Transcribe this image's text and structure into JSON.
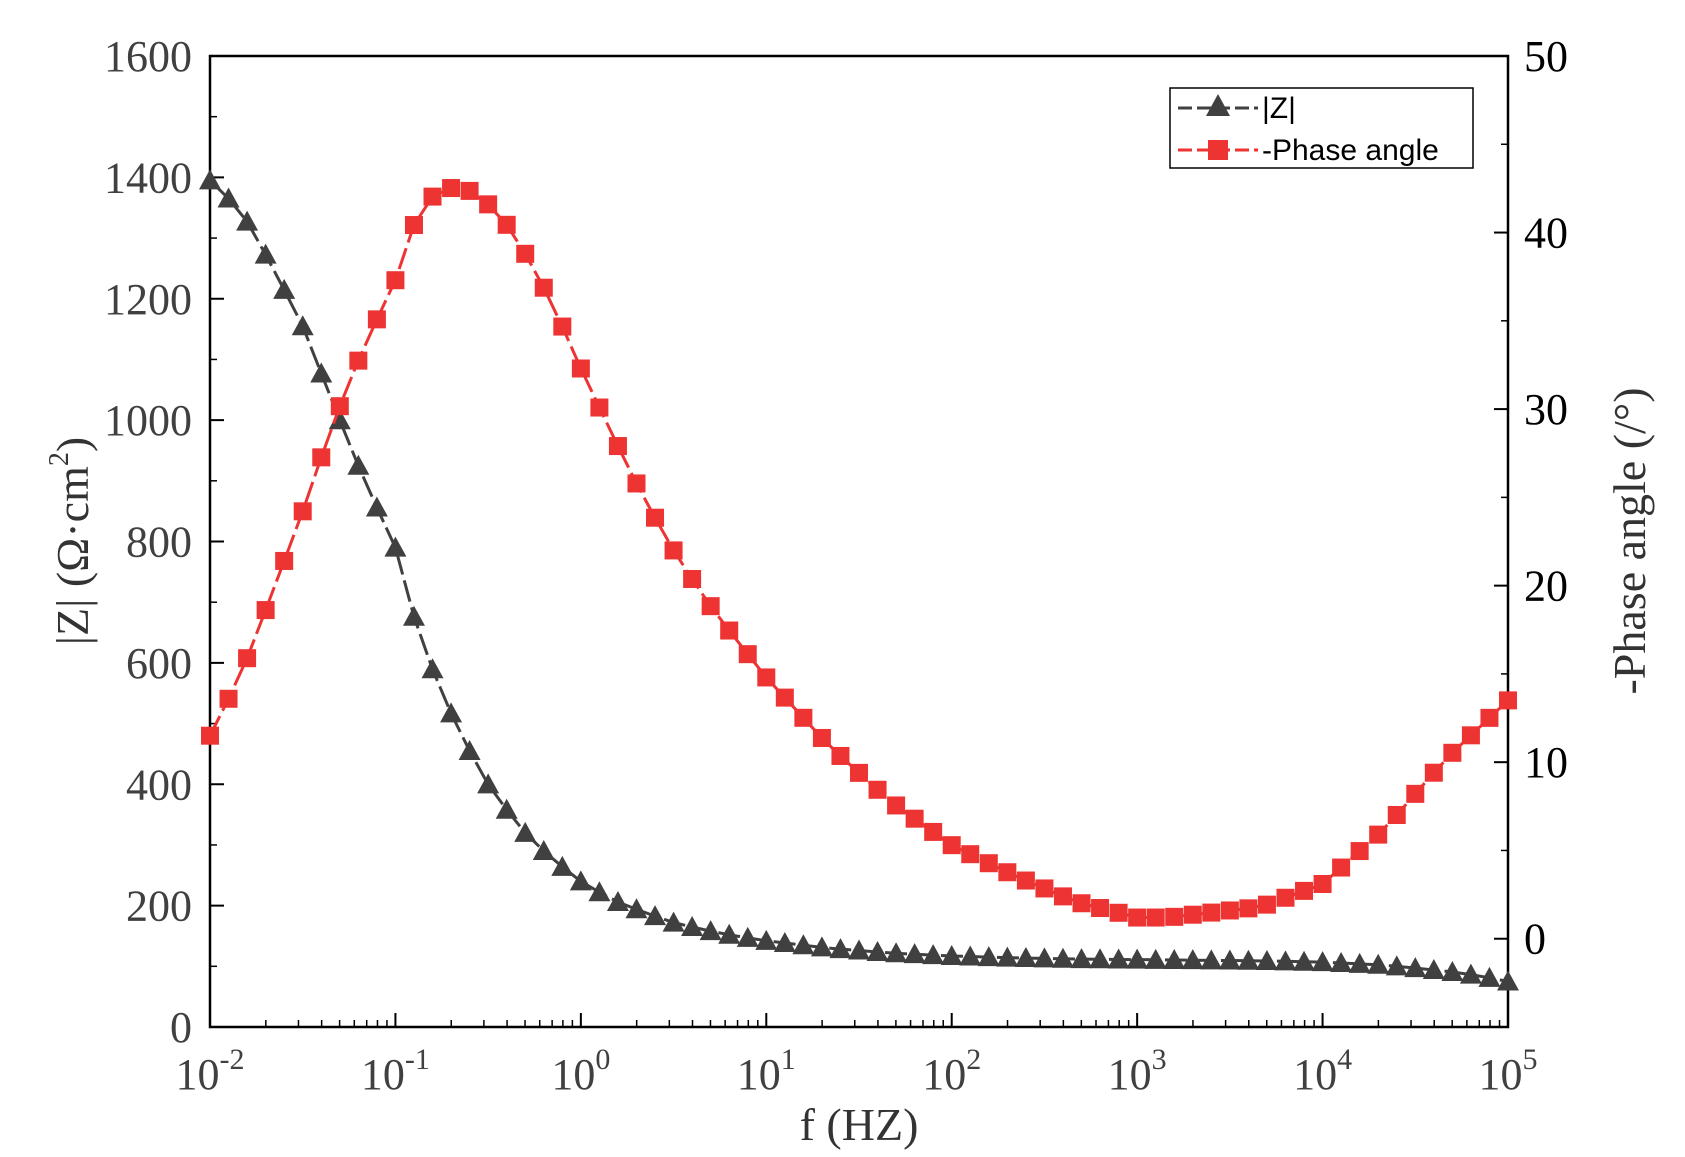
{
  "chart_data": {
    "type": "line",
    "title": "",
    "xlabel": "f (HZ)",
    "xscale": "log",
    "xlim": [
      0.01,
      100000
    ],
    "x_ticks": [
      {
        "base": "10",
        "exp": "-2",
        "value": 0.01
      },
      {
        "base": "10",
        "exp": "-1",
        "value": 0.1
      },
      {
        "base": "10",
        "exp": "0",
        "value": 1
      },
      {
        "base": "10",
        "exp": "1",
        "value": 10
      },
      {
        "base": "10",
        "exp": "2",
        "value": 100
      },
      {
        "base": "10",
        "exp": "3",
        "value": 1000
      },
      {
        "base": "10",
        "exp": "4",
        "value": 10000
      },
      {
        "base": "10",
        "exp": "5",
        "value": 100000
      }
    ],
    "ylabel_left": {
      "prefix": "|Z| (Ω·cm",
      "sup": "2",
      "suffix": ")"
    },
    "ylim_left": [
      0,
      1600
    ],
    "y_ticks_left": [
      "0",
      "200",
      "400",
      "600",
      "800",
      "1000",
      "1200",
      "1400",
      "1600"
    ],
    "ylabel_right": "-Phase angle (/°)",
    "ylim_right": [
      -5,
      50
    ],
    "y_ticks_right": [
      "0",
      "10",
      "20",
      "30",
      "40",
      "50"
    ],
    "legend_position": "top-right",
    "series": [
      {
        "name": "|Z|",
        "axis": "left",
        "color": "#404040",
        "marker": "triangle",
        "anchors": [
          [
            0.01,
            1395
          ],
          [
            0.0147,
            1345
          ],
          [
            0.0215,
            1255
          ],
          [
            0.0316,
            1155
          ],
          [
            0.0464,
            1025
          ],
          [
            0.0681,
            900
          ],
          [
            0.1,
            790
          ],
          [
            0.12,
            695
          ],
          [
            0.147,
            615
          ],
          [
            0.178,
            550
          ],
          [
            0.215,
            495
          ],
          [
            0.261,
            445
          ],
          [
            0.316,
            400
          ],
          [
            0.383,
            365
          ],
          [
            0.464,
            330
          ],
          [
            0.562,
            305
          ],
          [
            0.681,
            280
          ],
          [
            0.825,
            260
          ],
          [
            1,
            240
          ],
          [
            1.47,
            210
          ],
          [
            2.15,
            190
          ],
          [
            3.16,
            172
          ],
          [
            4.64,
            160
          ],
          [
            6.81,
            150
          ],
          [
            10,
            142
          ],
          [
            21.5,
            130
          ],
          [
            46.4,
            122
          ],
          [
            100,
            117
          ],
          [
            215,
            114
          ],
          [
            464,
            112
          ],
          [
            1000,
            111
          ],
          [
            2150,
            110
          ],
          [
            4640,
            109
          ],
          [
            10000,
            107
          ],
          [
            21500,
            102
          ],
          [
            46400,
            92
          ],
          [
            68100,
            85
          ],
          [
            100000,
            75
          ]
        ]
      },
      {
        "name": "-Phase angle",
        "axis": "right",
        "color": "#ee3333",
        "marker": "square",
        "anchors": [
          [
            0.01,
            11.5
          ],
          [
            0.0147,
            15
          ],
          [
            0.0215,
            19.5
          ],
          [
            0.0316,
            24.2
          ],
          [
            0.0464,
            29.3
          ],
          [
            0.0681,
            33.6
          ],
          [
            0.1,
            37.3
          ],
          [
            0.12,
            40
          ],
          [
            0.147,
            41.8
          ],
          [
            0.178,
            42.4
          ],
          [
            0.215,
            42.6
          ],
          [
            0.261,
            42.3
          ],
          [
            0.316,
            41.6
          ],
          [
            0.383,
            40.7
          ],
          [
            0.464,
            39.4
          ],
          [
            0.562,
            37.9
          ],
          [
            0.681,
            36.2
          ],
          [
            0.825,
            34.3
          ],
          [
            1,
            32.3
          ],
          [
            1.47,
            28.6
          ],
          [
            2.15,
            25.1
          ],
          [
            3.16,
            22
          ],
          [
            4.64,
            19.3
          ],
          [
            6.81,
            17
          ],
          [
            10,
            14.8
          ],
          [
            21.5,
            11
          ],
          [
            46.4,
            7.8
          ],
          [
            100,
            5.3
          ],
          [
            215,
            3.6
          ],
          [
            464,
            2.1
          ],
          [
            1000,
            1.2
          ],
          [
            1470,
            1.2
          ],
          [
            2150,
            1.4
          ],
          [
            4640,
            1.8
          ],
          [
            10000,
            3.1
          ],
          [
            21500,
            6.2
          ],
          [
            46400,
            10.2
          ],
          [
            100000,
            13.5
          ]
        ]
      }
    ]
  }
}
